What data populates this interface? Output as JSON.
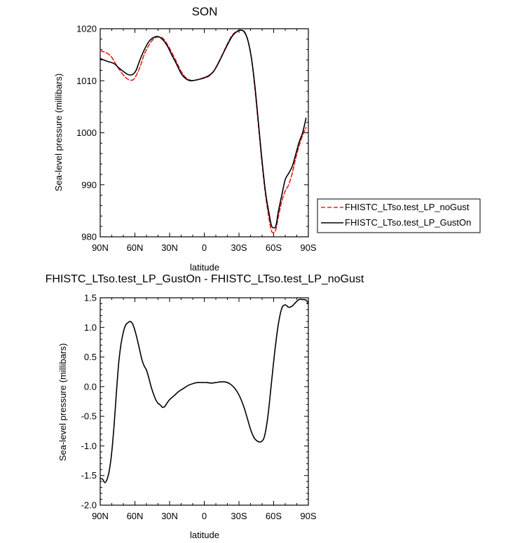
{
  "chart_data": [
    {
      "type": "line",
      "title": "SON",
      "xlabel": "latitude",
      "ylabel": "Sea-level pressure (millibars)",
      "xlim": [
        90,
        -90
      ],
      "ylim": [
        980,
        1020
      ],
      "x_ticks": [
        90,
        60,
        30,
        0,
        -30,
        -60,
        -90
      ],
      "x_tick_labels": [
        "90N",
        "60N",
        "30N",
        "0",
        "30S",
        "60S",
        "90S"
      ],
      "y_ticks": [
        980,
        990,
        1000,
        1010,
        1020
      ],
      "y_tick_labels": [
        "980",
        "990",
        "1000",
        "1010",
        "1020"
      ],
      "legend_position": "right",
      "series": [
        {
          "name": "FHISTC_LTso.test_LP_noGust",
          "color": "#e8201e",
          "dash": "dashed",
          "points": [
            [
              90,
              1015.8
            ],
            [
              84,
              1015.3
            ],
            [
              80,
              1014.5
            ],
            [
              76,
              1013.0
            ],
            [
              72,
              1011.7
            ],
            [
              68,
              1010.6
            ],
            [
              64,
              1010.1
            ],
            [
              61,
              1010.3
            ],
            [
              58,
              1011.4
            ],
            [
              55,
              1013.0
            ],
            [
              52,
              1015.0
            ],
            [
              48,
              1016.8
            ],
            [
              44,
              1018.0
            ],
            [
              40,
              1018.4
            ],
            [
              36,
              1018.2
            ],
            [
              32,
              1017.0
            ],
            [
              28,
              1015.4
            ],
            [
              24,
              1013.6
            ],
            [
              20,
              1011.8
            ],
            [
              16,
              1010.6
            ],
            [
              12,
              1010.1
            ],
            [
              8,
              1010.1
            ],
            [
              4,
              1010.3
            ],
            [
              0,
              1010.5
            ],
            [
              -4,
              1010.9
            ],
            [
              -8,
              1011.8
            ],
            [
              -12,
              1013.4
            ],
            [
              -16,
              1015.2
            ],
            [
              -20,
              1017.1
            ],
            [
              -24,
              1018.7
            ],
            [
              -28,
              1019.5
            ],
            [
              -32,
              1019.7
            ],
            [
              -35,
              1019.2
            ],
            [
              -38,
              1017.5
            ],
            [
              -41,
              1014.0
            ],
            [
              -44,
              1008.0
            ],
            [
              -47,
              1001.0
            ],
            [
              -50,
              994.0
            ],
            [
              -53,
              988.0
            ],
            [
              -56,
              983.5
            ],
            [
              -58,
              981.2
            ],
            [
              -60,
              980.8
            ],
            [
              -62,
              981.5
            ],
            [
              -64,
              983.8
            ],
            [
              -67,
              986.8
            ],
            [
              -70,
              988.8
            ],
            [
              -73,
              990.0
            ],
            [
              -76,
              992.2
            ],
            [
              -79,
              995.0
            ],
            [
              -82,
              997.5
            ],
            [
              -85,
              999.5
            ],
            [
              -88,
              1001.0
            ]
          ]
        },
        {
          "name": "FHISTC_LTso.test_LP_GustOn",
          "color": "#000000",
          "dash": "solid",
          "points": [
            [
              90,
              1014.3
            ],
            [
              86,
              1013.9
            ],
            [
              82,
              1013.6
            ],
            [
              78,
              1013.3
            ],
            [
              74,
              1012.5
            ],
            [
              70,
              1011.8
            ],
            [
              66,
              1011.2
            ],
            [
              62,
              1011.2
            ],
            [
              59,
              1012.0
            ],
            [
              56,
              1013.8
            ],
            [
              52,
              1015.9
            ],
            [
              48,
              1017.5
            ],
            [
              44,
              1018.3
            ],
            [
              40,
              1018.5
            ],
            [
              36,
              1017.9
            ],
            [
              32,
              1016.7
            ],
            [
              28,
              1014.9
            ],
            [
              24,
              1013.2
            ],
            [
              20,
              1011.4
            ],
            [
              16,
              1010.4
            ],
            [
              12,
              1010.0
            ],
            [
              8,
              1010.1
            ],
            [
              4,
              1010.3
            ],
            [
              0,
              1010.6
            ],
            [
              -4,
              1011.0
            ],
            [
              -8,
              1011.8
            ],
            [
              -12,
              1013.3
            ],
            [
              -16,
              1015.1
            ],
            [
              -20,
              1016.9
            ],
            [
              -24,
              1018.5
            ],
            [
              -28,
              1019.4
            ],
            [
              -32,
              1019.7
            ],
            [
              -35,
              1019.3
            ],
            [
              -38,
              1017.5
            ],
            [
              -41,
              1014.0
            ],
            [
              -44,
              1008.5
            ],
            [
              -47,
              1001.5
            ],
            [
              -50,
              994.5
            ],
            [
              -53,
              988.5
            ],
            [
              -56,
              984.5
            ],
            [
              -58,
              982.2
            ],
            [
              -60,
              981.7
            ],
            [
              -62,
              982.2
            ],
            [
              -64,
              984.8
            ],
            [
              -67,
              988.0
            ],
            [
              -70,
              991.0
            ],
            [
              -73,
              992.2
            ],
            [
              -76,
              993.5
            ],
            [
              -79,
              995.8
            ],
            [
              -82,
              998.2
            ],
            [
              -85,
              1000.0
            ],
            [
              -88,
              1002.8
            ]
          ]
        }
      ]
    },
    {
      "type": "line",
      "title": "FHISTC_LTso.test_LP_GustOn - FHISTC_LTso.test_LP_noGust",
      "xlabel": "latitude",
      "ylabel": "Sea-level pressure (millibars)",
      "xlim": [
        90,
        -90
      ],
      "ylim": [
        -2.0,
        1.5
      ],
      "x_ticks": [
        90,
        60,
        30,
        0,
        -30,
        -60,
        -90
      ],
      "x_tick_labels": [
        "90N",
        "60N",
        "30N",
        "0",
        "30S",
        "60S",
        "90S"
      ],
      "y_ticks": [
        -2.0,
        -1.5,
        -1.0,
        -0.5,
        0.0,
        0.5,
        1.0,
        1.5
      ],
      "y_tick_labels": [
        "-2.0",
        "-1.5",
        "-1.0",
        "-0.5",
        "0.0",
        "0.5",
        "1.0",
        "1.5"
      ],
      "series": [
        {
          "color": "#000000",
          "dash": "solid",
          "points": [
            [
              90,
              -1.55
            ],
            [
              88,
              -1.56
            ],
            [
              86,
              -1.62
            ],
            [
              84,
              -1.56
            ],
            [
              82,
              -1.4
            ],
            [
              80,
              -1.1
            ],
            [
              78,
              -0.65
            ],
            [
              76,
              -0.1
            ],
            [
              74,
              0.4
            ],
            [
              72,
              0.72
            ],
            [
              70,
              0.92
            ],
            [
              68,
              1.04
            ],
            [
              66,
              1.08
            ],
            [
              64,
              1.1
            ],
            [
              62,
              1.06
            ],
            [
              60,
              0.95
            ],
            [
              58,
              0.8
            ],
            [
              56,
              0.63
            ],
            [
              54,
              0.46
            ],
            [
              52,
              0.35
            ],
            [
              50,
              0.28
            ],
            [
              48,
              0.15
            ],
            [
              46,
              0.0
            ],
            [
              44,
              -0.12
            ],
            [
              42,
              -0.22
            ],
            [
              40,
              -0.28
            ],
            [
              38,
              -0.31
            ],
            [
              36,
              -0.35
            ],
            [
              34,
              -0.33
            ],
            [
              32,
              -0.27
            ],
            [
              30,
              -0.22
            ],
            [
              26,
              -0.15
            ],
            [
              22,
              -0.08
            ],
            [
              18,
              -0.03
            ],
            [
              14,
              0.02
            ],
            [
              10,
              0.05
            ],
            [
              6,
              0.07
            ],
            [
              2,
              0.07
            ],
            [
              -2,
              0.07
            ],
            [
              -6,
              0.06
            ],
            [
              -10,
              0.07
            ],
            [
              -14,
              0.08
            ],
            [
              -18,
              0.08
            ],
            [
              -22,
              0.05
            ],
            [
              -26,
              -0.02
            ],
            [
              -30,
              -0.14
            ],
            [
              -34,
              -0.33
            ],
            [
              -37,
              -0.52
            ],
            [
              -40,
              -0.72
            ],
            [
              -43,
              -0.86
            ],
            [
              -46,
              -0.92
            ],
            [
              -49,
              -0.93
            ],
            [
              -52,
              -0.84
            ],
            [
              -55,
              -0.5
            ],
            [
              -58,
              0.05
            ],
            [
              -61,
              0.6
            ],
            [
              -64,
              1.05
            ],
            [
              -67,
              1.32
            ],
            [
              -70,
              1.38
            ],
            [
              -73,
              1.34
            ],
            [
              -76,
              1.36
            ],
            [
              -79,
              1.42
            ],
            [
              -82,
              1.47
            ],
            [
              -85,
              1.47
            ],
            [
              -88,
              1.46
            ],
            [
              -90,
              1.4
            ]
          ]
        }
      ]
    }
  ]
}
